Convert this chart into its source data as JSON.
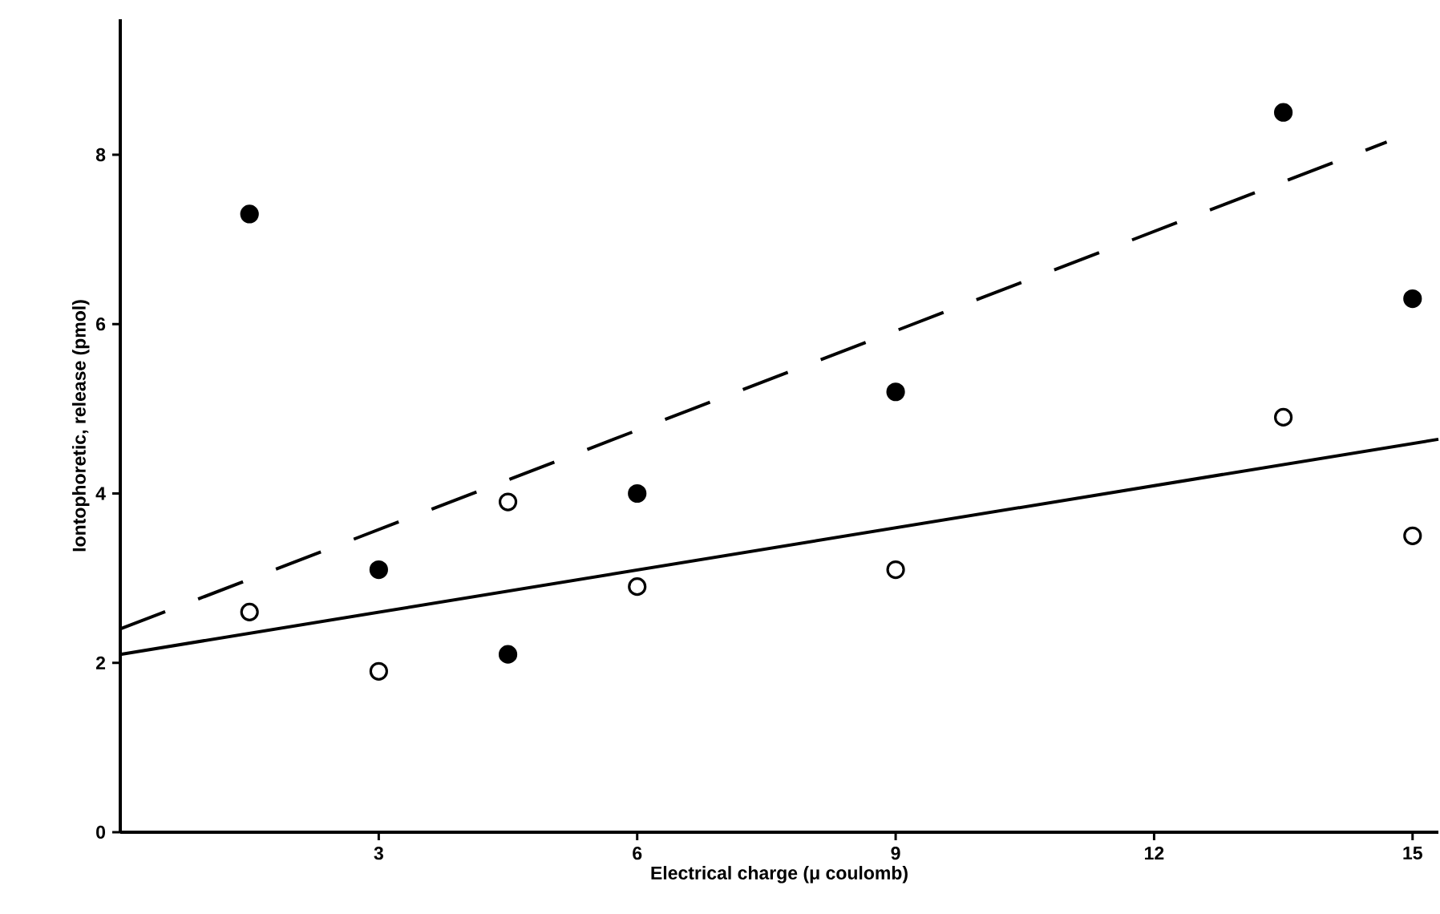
{
  "chart_data": {
    "type": "scatter",
    "xlabel": "Electrical charge (μ coulomb)",
    "ylabel": "Iontophoretic, release (pmol)",
    "xlim": [
      0,
      15.3
    ],
    "ylim": [
      0,
      9.6
    ],
    "xticks": [
      3,
      6,
      9,
      12,
      15
    ],
    "yticks": [
      0,
      2,
      4,
      6,
      8
    ],
    "series": [
      {
        "color": "#000000",
        "marker": "circle",
        "x": [
          1.5,
          3,
          4.5,
          6,
          9,
          13.5,
          15
        ],
        "values": [
          7.3,
          3.1,
          2.1,
          4.0,
          5.2,
          8.5,
          6.3
        ]
      },
      {
        "color": "#ffffff",
        "marker": "circle",
        "x": [
          1.5,
          3,
          4.5,
          6,
          9,
          13.5,
          15
        ],
        "values": [
          2.6,
          1.9,
          3.9,
          2.9,
          3.1,
          4.9,
          3.5
        ]
      },
      {
        "type": "line",
        "color": "#000000",
        "marker": "none",
        "line_style": "dashed",
        "x": [
          0,
          14.7
        ],
        "values": [
          2.4,
          8.15
        ]
      },
      {
        "type": "line",
        "color": "#000000",
        "marker": "none",
        "line_style": "solid",
        "x": [
          0,
          15.3
        ],
        "values": [
          2.1,
          4.64
        ]
      }
    ]
  }
}
